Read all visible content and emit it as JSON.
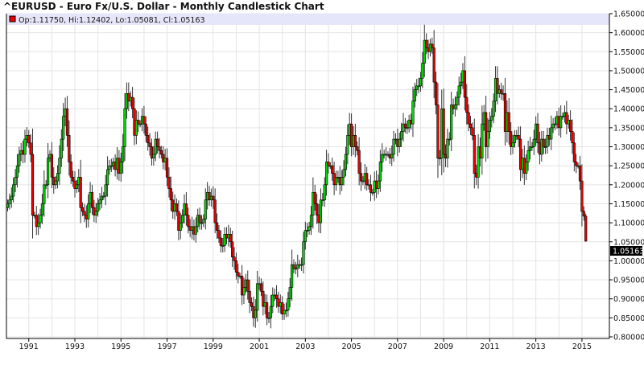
{
  "title": "^EURUSD - Euro Fx/U.S. Dollar - Monthly Candlestick Chart",
  "legend_text": "Op:1.11750, Hi:1.12402, Lo:1.05081, Cl:1.05163",
  "last_price_label": "1.05163",
  "colors": {
    "up": "#00dd00",
    "down": "#ee0000",
    "grid": "#e4e4e4",
    "legend_bar": "#e6e6fa",
    "outline": "#000000"
  },
  "chart_data": {
    "type": "candlestick",
    "title": "^EURUSD - Euro Fx/U.S. Dollar - Monthly Candlestick Chart",
    "frequency": "monthly",
    "start": "1990-02",
    "end": "2015-03",
    "ylim": [
      0.8,
      1.65
    ],
    "y_ticks": [
      "0.80000",
      "0.85000",
      "0.90000",
      "0.95000",
      "1.00000",
      "1.05000",
      "1.10000",
      "1.15000",
      "1.20000",
      "1.25000",
      "1.30000",
      "1.35000",
      "1.40000",
      "1.45000",
      "1.50000",
      "1.55000",
      "1.60000",
      "1.65000"
    ],
    "x_ticks": [
      "1991",
      "1993",
      "1995",
      "1997",
      "1999",
      "2001",
      "2003",
      "2005",
      "2007",
      "2009",
      "2011",
      "2013",
      "2015"
    ],
    "grid": true,
    "y_axis_side": "right",
    "first_open": 1.14,
    "last_candle": {
      "open": 1.1175,
      "high": 1.12402,
      "low": 1.05081,
      "close": 1.05163
    },
    "close": [
      1.15,
      1.16,
      1.17,
      1.2,
      1.22,
      1.25,
      1.28,
      1.29,
      1.28,
      1.32,
      1.33,
      1.31,
      1.28,
      1.12,
      1.12,
      1.09,
      1.1,
      1.12,
      1.15,
      1.2,
      1.2,
      1.27,
      1.28,
      1.22,
      1.2,
      1.21,
      1.23,
      1.27,
      1.32,
      1.38,
      1.4,
      1.33,
      1.26,
      1.22,
      1.21,
      1.19,
      1.2,
      1.22,
      1.14,
      1.13,
      1.12,
      1.11,
      1.15,
      1.18,
      1.14,
      1.12,
      1.13,
      1.15,
      1.16,
      1.17,
      1.17,
      1.2,
      1.24,
      1.25,
      1.25,
      1.26,
      1.24,
      1.27,
      1.23,
      1.26,
      1.3,
      1.4,
      1.44,
      1.42,
      1.43,
      1.4,
      1.33,
      1.37,
      1.36,
      1.36,
      1.38,
      1.36,
      1.33,
      1.31,
      1.3,
      1.27,
      1.28,
      1.32,
      1.3,
      1.29,
      1.28,
      1.26,
      1.27,
      1.22,
      1.19,
      1.16,
      1.13,
      1.15,
      1.13,
      1.08,
      1.1,
      1.12,
      1.15,
      1.12,
      1.09,
      1.08,
      1.09,
      1.07,
      1.09,
      1.12,
      1.1,
      1.1,
      1.11,
      1.16,
      1.18,
      1.16,
      1.17,
      1.16,
      1.1,
      1.08,
      1.06,
      1.04,
      1.04,
      1.07,
      1.06,
      1.07,
      1.05,
      1.01,
      1.0,
      0.97,
      0.96,
      0.96,
      0.91,
      0.93,
      0.95,
      0.92,
      0.89,
      0.88,
      0.85,
      0.87,
      0.94,
      0.94,
      0.92,
      0.88,
      0.89,
      0.85,
      0.85,
      0.88,
      0.91,
      0.91,
      0.9,
      0.88,
      0.89,
      0.86,
      0.87,
      0.87,
      0.9,
      0.93,
      0.99,
      0.98,
      0.98,
      0.99,
      0.99,
      0.99,
      1.05,
      1.08,
      1.08,
      1.09,
      1.12,
      1.18,
      1.15,
      1.12,
      1.1,
      1.16,
      1.16,
      1.2,
      1.26,
      1.25,
      1.25,
      1.23,
      1.2,
      1.22,
      1.22,
      1.2,
      1.22,
      1.24,
      1.28,
      1.33,
      1.36,
      1.3,
      1.33,
      1.3,
      1.29,
      1.23,
      1.21,
      1.21,
      1.23,
      1.2,
      1.2,
      1.18,
      1.18,
      1.21,
      1.19,
      1.21,
      1.26,
      1.28,
      1.28,
      1.28,
      1.28,
      1.27,
      1.28,
      1.32,
      1.32,
      1.3,
      1.32,
      1.34,
      1.36,
      1.35,
      1.35,
      1.37,
      1.36,
      1.42,
      1.45,
      1.46,
      1.46,
      1.48,
      1.52,
      1.58,
      1.56,
      1.55,
      1.57,
      1.56,
      1.47,
      1.41,
      1.27,
      1.27,
      1.4,
      1.28,
      1.27,
      1.32,
      1.32,
      1.41,
      1.4,
      1.41,
      1.43,
      1.46,
      1.47,
      1.5,
      1.43,
      1.39,
      1.36,
      1.35,
      1.33,
      1.23,
      1.22,
      1.3,
      1.27,
      1.36,
      1.39,
      1.3,
      1.34,
      1.37,
      1.38,
      1.42,
      1.48,
      1.44,
      1.45,
      1.44,
      1.44,
      1.34,
      1.39,
      1.34,
      1.3,
      1.31,
      1.33,
      1.33,
      1.32,
      1.24,
      1.27,
      1.23,
      1.26,
      1.29,
      1.3,
      1.3,
      1.32,
      1.36,
      1.31,
      1.28,
      1.32,
      1.3,
      1.3,
      1.33,
      1.32,
      1.35,
      1.36,
      1.36,
      1.38,
      1.35,
      1.38,
      1.38,
      1.39,
      1.36,
      1.37,
      1.34,
      1.31,
      1.26,
      1.25,
      1.25,
      1.21,
      1.13,
      1.1175,
      1.05163
    ]
  }
}
